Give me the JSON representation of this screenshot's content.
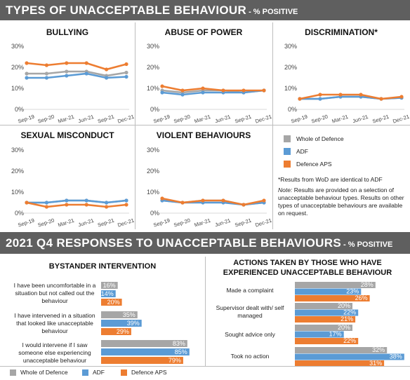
{
  "header": {
    "title": "TYPES OF UNACCEPTABLE BEHAVIOUR",
    "subtitle": " - % POSITIVE"
  },
  "section2": {
    "title": "2021 Q4 RESPONSES TO UNACCEPTABLE BEHAVIOURS",
    "subtitle": " - % POSITIVE"
  },
  "colors": {
    "whole_of_defence": "#a6a6a6",
    "adf": "#5b9bd5",
    "defence_aps": "#ed7d31"
  },
  "legend": {
    "items": [
      "Whole of Defence",
      "ADF",
      "Defence APS"
    ]
  },
  "notes": {
    "wod_note": "*Results from WoD are identical to ADF",
    "note_label": "Note:",
    "note_text": "Results are provided on a selection of unacceptable behaviour types. Results on other types of unacceptable behaviours are available on request."
  },
  "bottom_legend": {
    "items": [
      "Whole of Defence",
      "ADF",
      "Defence APS"
    ]
  },
  "bystander": {
    "title": "BYSTANDER INTERVENTION",
    "labels": [
      "I have been uncomfortable in a situation but not called out the behaviour",
      "I have intervened in a situation that looked like unacceptable behaviour",
      "I would intervene if I saw someone else experiencing unacceptable behaviour"
    ]
  },
  "actions": {
    "title": "ACTIONS TAKEN BY THOSE WHO HAVE EXPERIENCED UNACCEPTABLE BEHAVIOUR",
    "labels": [
      "Made a complaint",
      "Supervisor dealt with/ self managed",
      "Sought advice only",
      "Took no action"
    ]
  },
  "chart_data": [
    {
      "type": "line",
      "title": "BULLYING",
      "x": [
        "Sep-19",
        "Sep-20",
        "Mar-21",
        "Jun-21",
        "Sep-21",
        "Dec-21"
      ],
      "ylim": [
        0,
        30
      ],
      "yticks": [
        "0%",
        "10%",
        "20%",
        "30%"
      ],
      "series": [
        {
          "name": "Whole of Defence",
          "values": [
            17,
            17,
            18,
            18,
            16,
            17.5
          ]
        },
        {
          "name": "ADF",
          "values": [
            15,
            15,
            16,
            17,
            15,
            15.5
          ]
        },
        {
          "name": "Defence APS",
          "values": [
            22,
            21,
            22,
            22,
            19,
            21.5
          ]
        }
      ]
    },
    {
      "type": "line",
      "title": "ABUSE OF POWER",
      "x": [
        "Sep-19",
        "Sep-20",
        "Mar-21",
        "Jun-21",
        "Sep-21",
        "Dec-21"
      ],
      "ylim": [
        0,
        30
      ],
      "yticks": [
        "0%",
        "10%",
        "20%",
        "30%"
      ],
      "series": [
        {
          "name": "Whole of Defence",
          "values": [
            9,
            8,
            9,
            9,
            8,
            9
          ]
        },
        {
          "name": "ADF",
          "values": [
            8,
            7,
            8,
            8,
            8,
            9
          ]
        },
        {
          "name": "Defence APS",
          "values": [
            11,
            9,
            10,
            9,
            9,
            9
          ]
        }
      ]
    },
    {
      "type": "line",
      "title": "DISCRIMINATION*",
      "x": [
        "Sep-19",
        "Sep-20",
        "Mar-21",
        "Jun-21",
        "Sep-21",
        "Dec-21"
      ],
      "ylim": [
        0,
        30
      ],
      "yticks": [
        "0%",
        "10%",
        "20%",
        "30%"
      ],
      "series": [
        {
          "name": "Whole of Defence",
          "values": [
            5,
            5,
            6,
            6,
            5,
            5.5
          ]
        },
        {
          "name": "ADF",
          "values": [
            5,
            5,
            6,
            6,
            5,
            5.5
          ]
        },
        {
          "name": "Defence APS",
          "values": [
            5,
            7,
            7,
            7,
            5,
            6
          ]
        }
      ]
    },
    {
      "type": "line",
      "title": "SEXUAL MISCONDUCT",
      "x": [
        "Sep-19",
        "Sep-20",
        "Mar-21",
        "Jun-21",
        "Sep-21",
        "Dec-21"
      ],
      "ylim": [
        0,
        30
      ],
      "yticks": [
        "0%",
        "10%",
        "20%",
        "30%"
      ],
      "series": [
        {
          "name": "Whole of Defence",
          "values": [
            5,
            5,
            6,
            6,
            5,
            6
          ]
        },
        {
          "name": "ADF",
          "values": [
            5,
            5,
            6,
            6,
            5,
            6
          ]
        },
        {
          "name": "Defence APS",
          "values": [
            5,
            3,
            4,
            4,
            3,
            4
          ]
        }
      ]
    },
    {
      "type": "line",
      "title": "VIOLENT BEHAVIOURS",
      "x": [
        "Sep-19",
        "Sep-20",
        "Mar-21",
        "Jun-21",
        "Sep-21",
        "Dec-21"
      ],
      "ylim": [
        0,
        30
      ],
      "yticks": [
        "0%",
        "10%",
        "20%",
        "30%"
      ],
      "series": [
        {
          "name": "Whole of Defence",
          "values": [
            6,
            5,
            6,
            6,
            4,
            5
          ]
        },
        {
          "name": "ADF",
          "values": [
            6,
            5,
            5,
            5,
            4,
            5
          ]
        },
        {
          "name": "Defence APS",
          "values": [
            7,
            5,
            6,
            6,
            4,
            6
          ]
        }
      ]
    },
    {
      "type": "bar",
      "title": "BYSTANDER INTERVENTION",
      "categories": [
        "I have been uncomfortable in a situation but not called out the behaviour",
        "I have intervened in a situation that looked like unacceptable behaviour",
        "I would intervene if I saw someone else experiencing unacceptable behaviour"
      ],
      "series": [
        {
          "name": "Whole of Defence",
          "values": [
            16,
            35,
            83
          ],
          "labels": [
            "16%",
            "35%",
            "83%"
          ]
        },
        {
          "name": "ADF",
          "values": [
            14,
            39,
            85
          ],
          "labels": [
            "14%",
            "39%",
            "85%"
          ]
        },
        {
          "name": "Defence APS",
          "values": [
            20,
            29,
            79
          ],
          "labels": [
            "20%",
            "29%",
            "79%"
          ]
        }
      ]
    },
    {
      "type": "bar",
      "title": "ACTIONS TAKEN BY THOSE WHO HAVE EXPERIENCED UNACCEPTABLE BEHAVIOUR",
      "categories": [
        "Made a complaint",
        "Supervisor dealt with/ self managed",
        "Sought advice only",
        "Took no action"
      ],
      "series": [
        {
          "name": "Whole of Defence",
          "values": [
            28,
            20,
            20,
            32
          ],
          "labels": [
            "28%",
            "20%",
            "20%",
            "32%"
          ]
        },
        {
          "name": "ADF",
          "values": [
            23,
            22,
            17,
            38
          ],
          "labels": [
            "23%",
            "22%",
            "17%",
            "38%"
          ]
        },
        {
          "name": "Defence APS",
          "values": [
            26,
            21,
            22,
            31
          ],
          "labels": [
            "26%",
            "21%",
            "22%",
            "31%"
          ]
        }
      ]
    }
  ]
}
